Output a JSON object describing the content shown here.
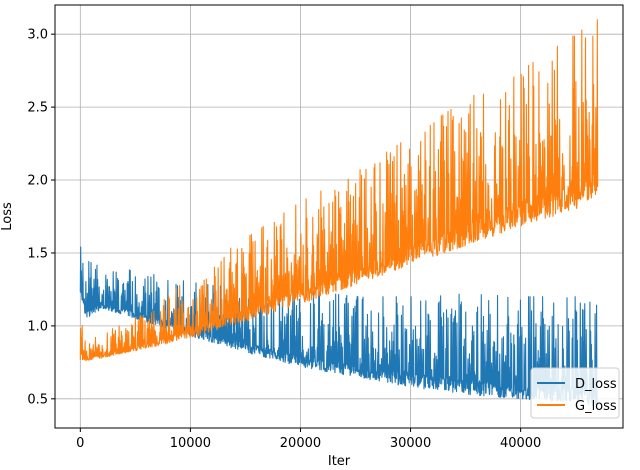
{
  "chart_data": {
    "type": "line",
    "title": "",
    "xlabel": "Iter",
    "ylabel": "Loss",
    "xlim": [
      -2300,
      49300
    ],
    "ylim": [
      0.3,
      3.2
    ],
    "x_ticks": [
      0,
      10000,
      20000,
      30000,
      40000
    ],
    "x_tick_labels": [
      "0",
      "10000",
      "20000",
      "30000",
      "40000"
    ],
    "y_ticks": [
      0.5,
      1.0,
      1.5,
      2.0,
      2.5,
      3.0
    ],
    "y_tick_labels": [
      "0.5",
      "1.0",
      "1.5",
      "2.0",
      "2.5",
      "3.0"
    ],
    "grid": true,
    "legend_position": "lower-right",
    "series": [
      {
        "name": "D_loss",
        "color": "#1f77b4",
        "x": [
          0,
          500,
          2000,
          5000,
          8000,
          10000,
          15000,
          20000,
          25000,
          30000,
          35000,
          40000,
          45000,
          47000
        ],
        "lower": [
          1.2,
          1.05,
          1.12,
          1.05,
          0.98,
          0.93,
          0.82,
          0.72,
          0.65,
          0.58,
          0.53,
          0.5,
          0.47,
          0.45
        ],
        "upper": [
          1.55,
          1.45,
          1.4,
          1.38,
          1.33,
          1.3,
          1.25,
          1.25,
          1.2,
          1.2,
          1.22,
          1.2,
          1.2,
          1.15
        ]
      },
      {
        "name": "G_loss",
        "color": "#ff7f0e",
        "x": [
          0,
          500,
          2000,
          5000,
          8000,
          10000,
          15000,
          20000,
          25000,
          30000,
          35000,
          40000,
          45000,
          47000
        ],
        "lower": [
          0.75,
          0.76,
          0.78,
          0.83,
          0.88,
          0.92,
          1.03,
          1.15,
          1.28,
          1.42,
          1.55,
          1.68,
          1.8,
          1.9
        ],
        "upper": [
          1.2,
          0.88,
          0.95,
          1.05,
          1.2,
          1.35,
          1.6,
          1.85,
          2.05,
          2.3,
          2.55,
          2.75,
          3.0,
          3.1
        ]
      }
    ]
  }
}
